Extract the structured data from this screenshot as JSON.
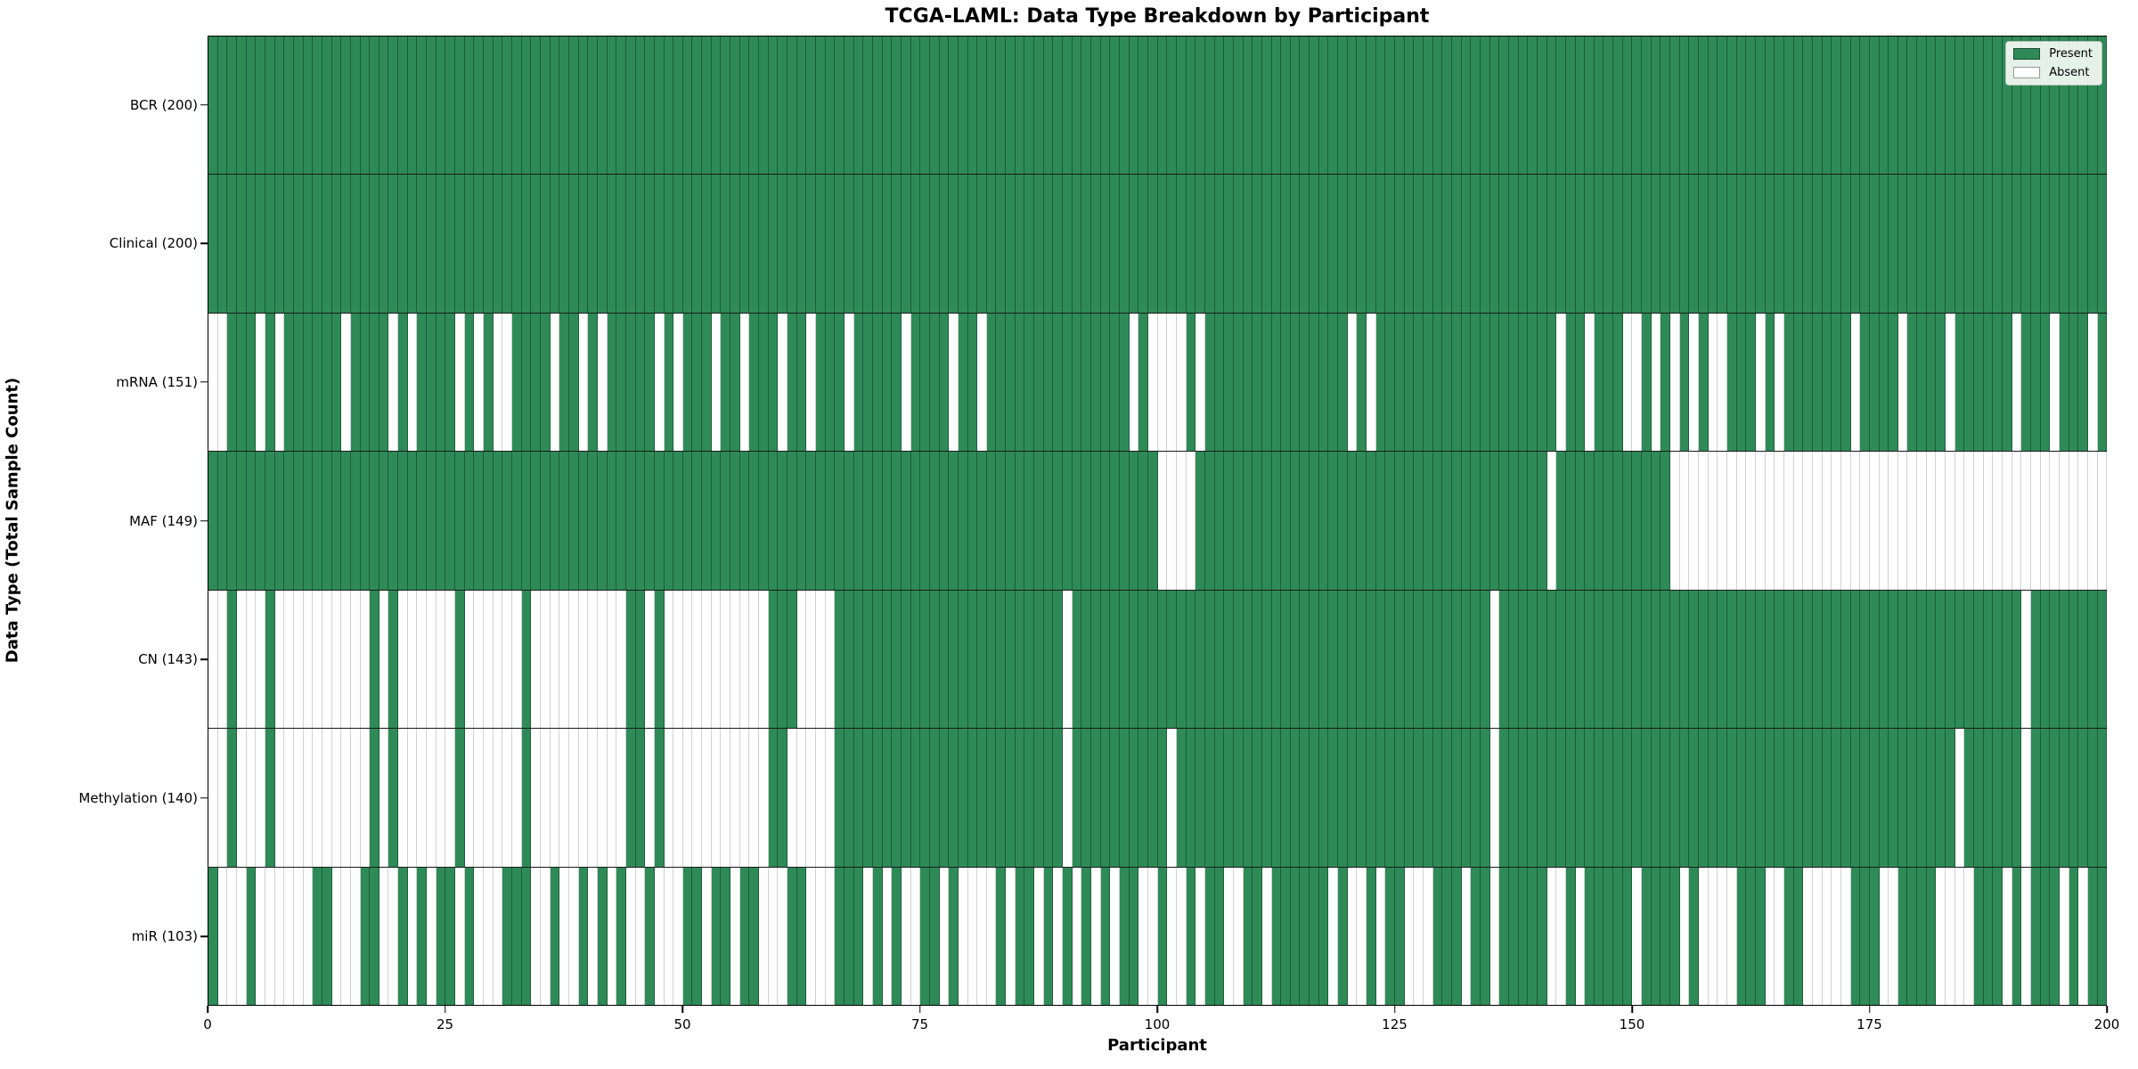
{
  "title": "TCGA-LAML: Data Type Breakdown by Participant",
  "legend": {
    "present_label": "Present",
    "absent_label": "Absent"
  },
  "colors": {
    "present": "#2e8b57",
    "absent": "#ffffff",
    "frame": "#000000"
  },
  "chart_data": {
    "type": "heatmap",
    "title": "TCGA-LAML: Data Type Breakdown by Participant",
    "xlabel": "Participant",
    "ylabel": "Data Type (Total Sample Count)",
    "x_range": [
      0,
      200
    ],
    "n_participants": 200,
    "x_ticks": [
      0,
      25,
      50,
      75,
      100,
      125,
      150,
      175,
      200
    ],
    "legend_entries": [
      "Present",
      "Absent"
    ],
    "legend_position": "upper right",
    "cell_values": "1 = present (green), 0 = absent (white); absent_participants lists 0-indexed participant columns that are white in each row",
    "rows": [
      {
        "name": "BCR",
        "label": "BCR (200)",
        "present_count": 200,
        "absent_participants": []
      },
      {
        "name": "Clinical",
        "label": "Clinical (200)",
        "present_count": 200,
        "absent_participants": []
      },
      {
        "name": "mRNA",
        "label": "mRNA (151)",
        "present_count": 151,
        "absent_participants": [
          0,
          1,
          5,
          7,
          14,
          19,
          21,
          26,
          28,
          30,
          31,
          36,
          39,
          41,
          47,
          49,
          53,
          56,
          60,
          63,
          67,
          73,
          78,
          81,
          97,
          99,
          100,
          101,
          102,
          104,
          120,
          122,
          142,
          145,
          149,
          150,
          152,
          154,
          156,
          158,
          159,
          163,
          165,
          173,
          178,
          183,
          190,
          194,
          198
        ]
      },
      {
        "name": "MAF",
        "label": "MAF (149)",
        "present_count": 149,
        "absent_participants": [
          100,
          101,
          102,
          103,
          141,
          154,
          155,
          156,
          157,
          158,
          159,
          160,
          161,
          162,
          163,
          164,
          165,
          166,
          167,
          168,
          169,
          170,
          171,
          172,
          173,
          174,
          175,
          176,
          177,
          178,
          179,
          180,
          181,
          182,
          183,
          184,
          185,
          186,
          187,
          188,
          189,
          190,
          191,
          192,
          193,
          194,
          195,
          196,
          197,
          198,
          199
        ]
      },
      {
        "name": "CN",
        "label": "CN (143)",
        "present_count": 143,
        "absent_participants": [
          0,
          1,
          3,
          4,
          5,
          7,
          8,
          9,
          10,
          11,
          12,
          13,
          14,
          15,
          16,
          18,
          20,
          21,
          22,
          23,
          24,
          25,
          27,
          28,
          29,
          30,
          31,
          32,
          34,
          35,
          36,
          37,
          38,
          39,
          40,
          41,
          42,
          43,
          46,
          48,
          49,
          50,
          51,
          52,
          53,
          54,
          55,
          56,
          57,
          58,
          62,
          63,
          64,
          65,
          90,
          135,
          191
        ]
      },
      {
        "name": "Methylation",
        "label": "Methylation (140)",
        "present_count": 140,
        "absent_participants": [
          0,
          1,
          3,
          4,
          5,
          7,
          8,
          9,
          10,
          11,
          12,
          13,
          14,
          15,
          16,
          18,
          20,
          21,
          22,
          23,
          24,
          25,
          27,
          28,
          29,
          30,
          31,
          32,
          34,
          35,
          36,
          37,
          38,
          39,
          40,
          41,
          42,
          43,
          46,
          48,
          49,
          50,
          51,
          52,
          53,
          54,
          55,
          56,
          57,
          58,
          61,
          62,
          63,
          64,
          65,
          90,
          101,
          135,
          184,
          191
        ]
      },
      {
        "name": "miR",
        "label": "miR (103)",
        "present_count": 103,
        "absent_participants": [
          1,
          2,
          3,
          5,
          6,
          7,
          8,
          9,
          10,
          13,
          14,
          15,
          18,
          19,
          21,
          23,
          26,
          28,
          29,
          30,
          34,
          35,
          37,
          38,
          40,
          42,
          44,
          45,
          47,
          48,
          49,
          52,
          55,
          58,
          59,
          60,
          63,
          64,
          65,
          69,
          71,
          73,
          74,
          77,
          79,
          80,
          81,
          82,
          84,
          87,
          89,
          91,
          93,
          95,
          98,
          99,
          101,
          102,
          104,
          107,
          108,
          111,
          118,
          120,
          121,
          123,
          126,
          127,
          128,
          132,
          135,
          141,
          142,
          144,
          150,
          155,
          157,
          158,
          159,
          160,
          164,
          165,
          168,
          169,
          170,
          171,
          172,
          176,
          177,
          182,
          183,
          184,
          185,
          189,
          191,
          195,
          197
        ]
      }
    ]
  }
}
